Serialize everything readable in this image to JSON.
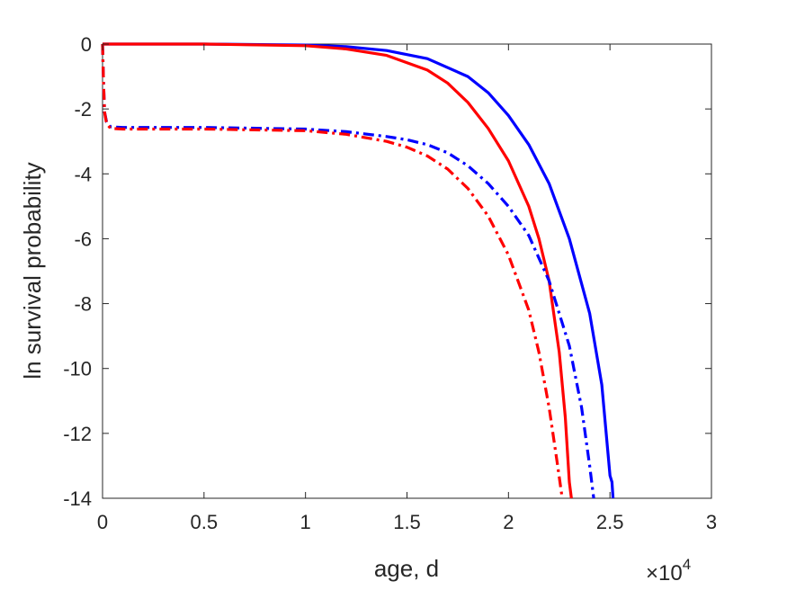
{
  "chart_data": {
    "type": "line",
    "title": "",
    "xlabel": "age, d",
    "ylabel": "ln survival probability",
    "x_multiplier_base": "×10",
    "x_multiplier_exp": "4",
    "xlim": [
      0,
      30000
    ],
    "ylim": [
      -14,
      0
    ],
    "xticks": [
      0,
      5000,
      10000,
      15000,
      20000,
      25000,
      30000
    ],
    "xtick_labels": [
      "0",
      "0.5",
      "1",
      "1.5",
      "2",
      "2.5",
      "3"
    ],
    "yticks": [
      0,
      -2,
      -4,
      -6,
      -8,
      -10,
      -12,
      -14
    ],
    "ytick_labels": [
      "0",
      "-2",
      "-4",
      "-6",
      "-8",
      "-10",
      "-12",
      "-14"
    ],
    "grid": false,
    "legend": "none",
    "series": [
      {
        "color": "#0000ff",
        "style": "solid",
        "points": [
          [
            0,
            0
          ],
          [
            5000,
            0
          ],
          [
            10000,
            -0.03
          ],
          [
            12000,
            -0.08
          ],
          [
            14000,
            -0.2
          ],
          [
            16000,
            -0.45
          ],
          [
            18000,
            -1.0
          ],
          [
            19000,
            -1.5
          ],
          [
            20000,
            -2.2
          ],
          [
            21000,
            -3.1
          ],
          [
            22000,
            -4.3
          ],
          [
            23000,
            -6.0
          ],
          [
            24000,
            -8.3
          ],
          [
            24600,
            -10.5
          ],
          [
            25000,
            -13.3
          ],
          [
            25100,
            -13.5
          ],
          [
            25150,
            -14
          ]
        ]
      },
      {
        "color": "#ff0000",
        "style": "solid",
        "points": [
          [
            0,
            0
          ],
          [
            5000,
            0
          ],
          [
            10000,
            -0.05
          ],
          [
            12000,
            -0.15
          ],
          [
            14000,
            -0.35
          ],
          [
            16000,
            -0.8
          ],
          [
            17000,
            -1.2
          ],
          [
            18000,
            -1.8
          ],
          [
            19000,
            -2.6
          ],
          [
            20000,
            -3.6
          ],
          [
            21000,
            -5.0
          ],
          [
            21500,
            -6.0
          ],
          [
            22000,
            -7.3
          ],
          [
            22500,
            -9.5
          ],
          [
            22800,
            -11.5
          ],
          [
            23000,
            -13.5
          ],
          [
            23100,
            -14
          ]
        ]
      },
      {
        "color": "#0000ff",
        "style": "dashdot",
        "points": [
          [
            0,
            0
          ],
          [
            50,
            -1.2
          ],
          [
            100,
            -2.1
          ],
          [
            200,
            -2.4
          ],
          [
            400,
            -2.55
          ],
          [
            1000,
            -2.57
          ],
          [
            5000,
            -2.57
          ],
          [
            10000,
            -2.62
          ],
          [
            12000,
            -2.7
          ],
          [
            14000,
            -2.85
          ],
          [
            15000,
            -2.95
          ],
          [
            16000,
            -3.1
          ],
          [
            17000,
            -3.35
          ],
          [
            18000,
            -3.75
          ],
          [
            19000,
            -4.3
          ],
          [
            20000,
            -5.0
          ],
          [
            21000,
            -5.9
          ],
          [
            22000,
            -7.3
          ],
          [
            23000,
            -9.3
          ],
          [
            23600,
            -11.2
          ],
          [
            24000,
            -13.0
          ],
          [
            24200,
            -14
          ]
        ]
      },
      {
        "color": "#ff0000",
        "style": "dashdot",
        "points": [
          [
            0,
            0
          ],
          [
            50,
            -1.2
          ],
          [
            100,
            -2.1
          ],
          [
            200,
            -2.45
          ],
          [
            400,
            -2.6
          ],
          [
            1000,
            -2.62
          ],
          [
            5000,
            -2.62
          ],
          [
            10000,
            -2.67
          ],
          [
            12000,
            -2.78
          ],
          [
            14000,
            -3.0
          ],
          [
            15000,
            -3.18
          ],
          [
            16000,
            -3.45
          ],
          [
            17000,
            -3.85
          ],
          [
            18000,
            -4.45
          ],
          [
            19000,
            -5.3
          ],
          [
            20000,
            -6.5
          ],
          [
            21000,
            -8.2
          ],
          [
            21500,
            -9.5
          ],
          [
            22000,
            -11.2
          ],
          [
            22400,
            -12.9
          ],
          [
            22650,
            -14
          ]
        ]
      }
    ]
  }
}
